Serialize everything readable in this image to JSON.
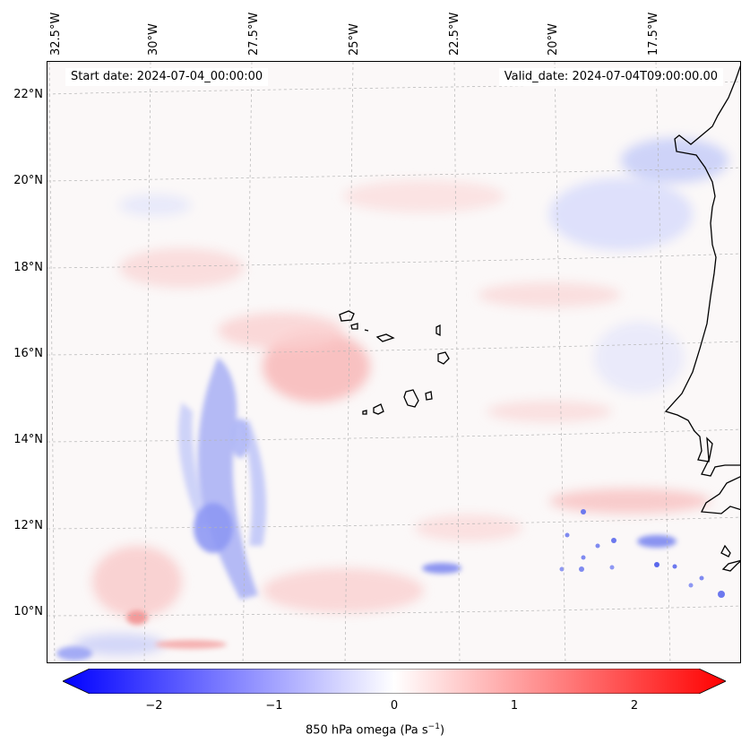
{
  "map": {
    "start_label": "Start date: 2024-07-04_00:00:00",
    "valid_label": "Valid_date: 2024-07-04T09:00:00.00",
    "longitude_labels": [
      "32.5°W",
      "30°W",
      "27.5°W",
      "25°W",
      "22.5°W",
      "20°W",
      "17.5°W"
    ],
    "latitude_labels": [
      "22°N",
      "20°N",
      "18°N",
      "16°N",
      "14°N",
      "12°N",
      "10°N"
    ],
    "field": "850 hPa omega",
    "colors": {
      "negative": "#0000ff",
      "zero": "#ffffff",
      "positive": "#ff0000",
      "coastline": "#000000"
    }
  },
  "colorbar": {
    "ticks": [
      "−2",
      "−1",
      "0",
      "1",
      "2"
    ],
    "label": "850 hPa omega (Pa s",
    "label_exp": "−1",
    "label_end": ")",
    "range": [
      -2.6,
      2.6
    ]
  }
}
